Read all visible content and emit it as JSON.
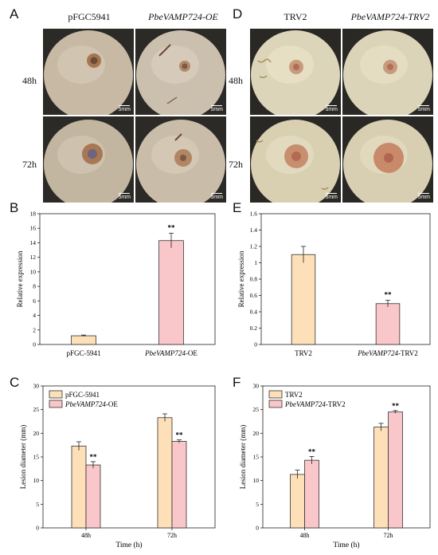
{
  "panels": {
    "A": "A",
    "B": "B",
    "C": "C",
    "D": "D",
    "E": "E",
    "F": "F"
  },
  "photos_left": {
    "col1": "pFGC5941",
    "col2": "PbeVAMP724-OE",
    "row1": "48h",
    "row2": "72h",
    "scale": "5mm"
  },
  "photos_right": {
    "col1": "TRV2",
    "col2": "PbeVAMP724-TRV2",
    "row1": "48h",
    "row2": "72h",
    "scale": "5mm"
  },
  "colors": {
    "bar_control": "#fde0b8",
    "bar_treatment": "#f9c6c9",
    "bar_stroke": "#444444",
    "error_bar": "#b08a84"
  },
  "chart_data": [
    {
      "id": "B",
      "type": "bar",
      "categories": [
        {
          "prefix": "pFGC-5941",
          "suffix": ""
        },
        {
          "prefix": "PbeVAMP724",
          "suffix": "-OE"
        }
      ],
      "values": [
        1.2,
        14.3
      ],
      "errors": [
        0.1,
        1.0
      ],
      "significance": [
        "",
        "**"
      ],
      "ylabel": "Relative expression",
      "xlabel": "",
      "ylim": [
        0,
        18
      ],
      "yticks": [
        0,
        2,
        4,
        6,
        8,
        10,
        12,
        14,
        16,
        18
      ],
      "bar_colors": [
        "#fde0b8",
        "#f9c6c9"
      ]
    },
    {
      "id": "E",
      "type": "bar",
      "categories": [
        {
          "prefix": "TRV2",
          "suffix": ""
        },
        {
          "prefix": "PbeVAMP724",
          "suffix": "-TRV2"
        }
      ],
      "values": [
        1.1,
        0.5
      ],
      "errors": [
        0.1,
        0.04
      ],
      "significance": [
        "",
        "**"
      ],
      "ylabel": "Relative expression",
      "xlabel": "",
      "ylim": [
        0,
        1.6
      ],
      "yticks": [
        0,
        0.2,
        0.4,
        0.6,
        0.8,
        1,
        1.2,
        1.4,
        1.6
      ],
      "bar_colors": [
        "#fde0b8",
        "#f9c6c9"
      ]
    },
    {
      "id": "C",
      "type": "bar",
      "categories": [
        "48h",
        "72h"
      ],
      "series": [
        {
          "name": "pFGC-5941",
          "name_italic": "",
          "name_suffix": "",
          "values": [
            17.3,
            23.3
          ],
          "errors": [
            0.9,
            0.8
          ],
          "significance": [
            "",
            ""
          ]
        },
        {
          "name": "",
          "name_italic": "PbeVAMP724",
          "name_suffix": "-OE",
          "values": [
            13.3,
            18.3
          ],
          "errors": [
            0.7,
            0.3
          ],
          "significance": [
            "**",
            "**"
          ]
        }
      ],
      "xlabel": "Time (h)",
      "ylabel": "Lesion diameter (mm)",
      "ylim": [
        0,
        30
      ],
      "yticks": [
        0,
        5,
        10,
        15,
        20,
        25,
        30
      ],
      "legend": "top-left"
    },
    {
      "id": "F",
      "type": "bar",
      "categories": [
        "48h",
        "72h"
      ],
      "series": [
        {
          "name": "TRV2",
          "name_italic": "",
          "name_suffix": "",
          "values": [
            11.3,
            21.3
          ],
          "errors": [
            0.9,
            0.8
          ],
          "significance": [
            "",
            ""
          ]
        },
        {
          "name": "",
          "name_italic": "PbeVAMP724",
          "name_suffix": "-TRV2",
          "values": [
            14.3,
            24.5
          ],
          "errors": [
            0.8,
            0.3
          ],
          "significance": [
            "**",
            "**"
          ]
        }
      ],
      "xlabel": "Time (h)",
      "ylabel": "Lesion diameter (mm)",
      "ylim": [
        0,
        30
      ],
      "yticks": [
        0,
        5,
        10,
        15,
        20,
        25,
        30
      ],
      "legend": "top-left"
    }
  ]
}
